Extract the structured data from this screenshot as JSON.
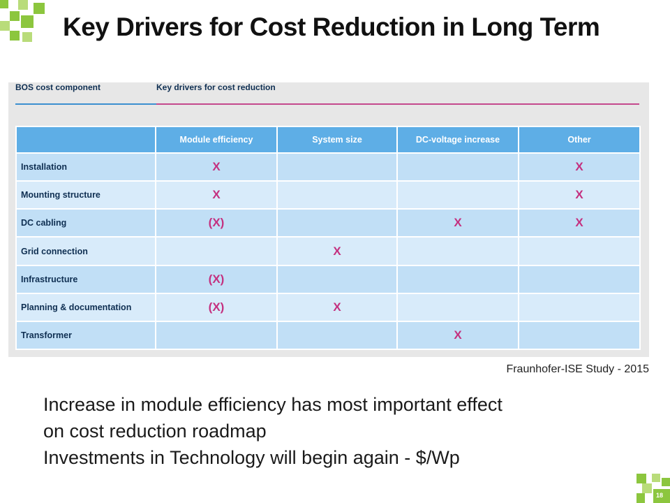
{
  "slide": {
    "title": "Key Drivers for Cost Reduction in Long Term",
    "source": "Fraunhofer-ISE Study - 2015",
    "body_lines": [
      "Increase in module efficiency has most important effect",
      "on cost reduction roadmap",
      "Investments in Technology will begin again - $/Wp"
    ],
    "page_number": "18",
    "accent_color": "#8cc63e"
  },
  "figure": {
    "left_header": "BOS cost component",
    "right_header": "Key drivers for cost reduction",
    "columns": [
      "",
      "Module efficiency",
      "System size",
      "DC-voltage increase",
      "Other"
    ],
    "rows": [
      {
        "label": "Installation",
        "cells": [
          "X",
          "",
          "",
          "X"
        ]
      },
      {
        "label": "Mounting structure",
        "cells": [
          "X",
          "",
          "",
          "X"
        ]
      },
      {
        "label": "DC cabling",
        "cells": [
          "(X)",
          "",
          "X",
          "X"
        ]
      },
      {
        "label": "Grid connection",
        "cells": [
          "",
          "X",
          "",
          ""
        ]
      },
      {
        "label": "Infrastructure",
        "cells": [
          "(X)",
          "",
          "",
          ""
        ]
      },
      {
        "label": "Planning & documentation",
        "cells": [
          "(X)",
          "X",
          "",
          ""
        ]
      },
      {
        "label": "Transformer",
        "cells": [
          "",
          "",
          "X",
          ""
        ]
      }
    ]
  }
}
